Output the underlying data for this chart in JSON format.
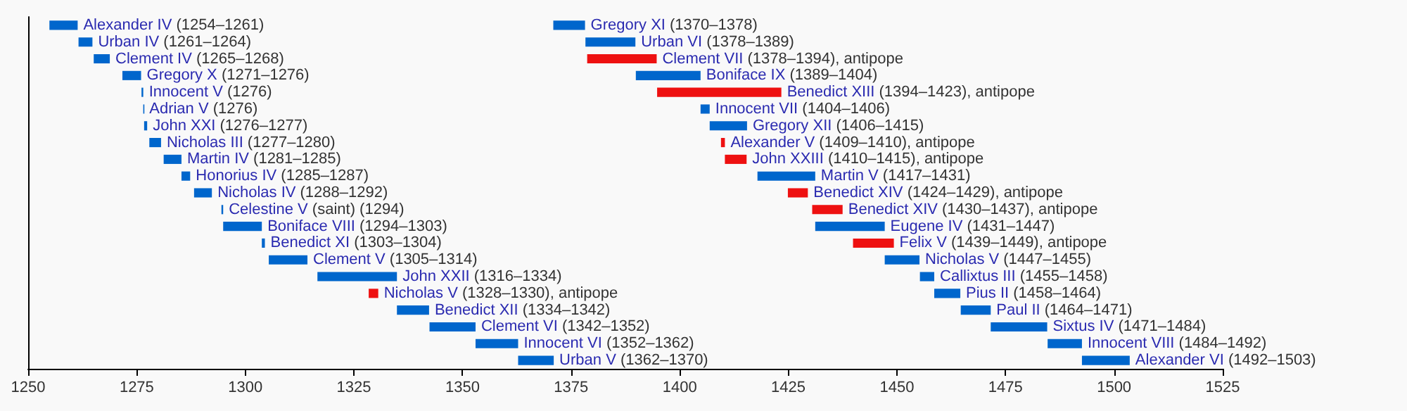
{
  "chart_data": {
    "type": "bar",
    "orientation": "horizontal",
    "categories": [
      null,
      null,
      null,
      null,
      null,
      null,
      null,
      null,
      null,
      null,
      null,
      null,
      null,
      null,
      null,
      null,
      null,
      null,
      null,
      null,
      null
    ],
    "xlim": [
      1250,
      1525
    ],
    "xticks": [
      1250,
      1275,
      1300,
      1325,
      1350,
      1375,
      1400,
      1425,
      1450,
      1475,
      1500,
      1525
    ],
    "series": [
      {
        "base": [
          1254.9,
          1261.6,
          1265.1,
          1271.7,
          1276.1,
          1276.5,
          1276.7,
          1277.9,
          1281.2,
          1285.3,
          1288.2,
          1294.5,
          1294.9,
          1303.8,
          1305.4,
          1316.6,
          1328.4,
          1334.9,
          1342.4,
          1353.0,
          1362.8
        ],
        "values": [
          6.5,
          3.2,
          3.7,
          4.3,
          0.4,
          0.1,
          0.7,
          2.7,
          4.1,
          2.0,
          4.1,
          0.4,
          8.9,
          0.7,
          8.9,
          18.3,
          2.2,
          7.4,
          10.6,
          9.8,
          8.2
        ],
        "colors": [
          "#0066cc",
          "#0066cc",
          "#0066cc",
          "#0066cc",
          "#0066cc",
          "#0066cc",
          "#0066cc",
          "#0066cc",
          "#0066cc",
          "#0066cc",
          "#0066cc",
          "#0066cc",
          "#0066cc",
          "#0066cc",
          "#0066cc",
          "#0066cc",
          "#ee1111",
          "#0066cc",
          "#0066cc",
          "#0066cc",
          "#0066cc"
        ]
      },
      {
        "base": [
          1370.9,
          1378.3,
          1378.7,
          1389.9,
          1394.8,
          1404.8,
          1406.9,
          1409.5,
          1410.4,
          1417.9,
          1424.9,
          1430.5,
          1431.2,
          1439.9,
          1447.2,
          1455.3,
          1458.6,
          1464.7,
          1471.6,
          1484.7,
          1492.6
        ],
        "values": [
          7.3,
          11.5,
          16,
          14.9,
          28.6,
          2.1,
          8.6,
          0.9,
          5,
          13.3,
          4.6,
          7,
          16,
          9.4,
          8,
          3.3,
          6,
          6.9,
          13,
          7.9,
          11
        ],
        "colors": [
          "#0066cc",
          "#0066cc",
          "#ee1111",
          "#0066cc",
          "#ee1111",
          "#0066cc",
          "#0066cc",
          "#ee1111",
          "#ee1111",
          "#0066cc",
          "#ee1111",
          "#ee1111",
          "#0066cc",
          "#ee1111",
          "#0066cc",
          "#0066cc",
          "#0066cc",
          "#0066cc",
          "#0066cc",
          "#0066cc",
          "#0066cc"
        ]
      }
    ],
    "annotations": [
      {
        "text": "Alexander IV (1254–1261)",
        "x": 1261.4
      },
      {
        "text": "Urban IV (1261–1264)",
        "x": 1264.8
      },
      {
        "text": "Clement IV (1265–1268)",
        "x": 1268.8
      },
      {
        "text": "Gregory X (1271–1276)",
        "x": 1276.0
      },
      {
        "text": "Innocent V (1276)",
        "x": 1276.5
      },
      {
        "text": "Adrian V (1276)",
        "x": 1276.6
      },
      {
        "text": "John XXI (1276–1277)",
        "x": 1277.4
      },
      {
        "text": "Nicholas III (1277–1280)",
        "x": 1280.6
      },
      {
        "text": "Martin IV (1281–1285)",
        "x": 1285.3
      },
      {
        "text": "Honorius IV (1285–1287)",
        "x": 1287.3
      },
      {
        "text": "Nicholas IV (1288–1292)",
        "x": 1292.3
      },
      {
        "text": "Celestine V (saint) (1294)",
        "x": 1294.9
      },
      {
        "text": "Boniface VIII (1294–1303)",
        "x": 1303.8
      },
      {
        "text": "Benedict XI (1303–1304)",
        "x": 1304.5
      },
      {
        "text": "Clement V (1305–1314)",
        "x": 1314.3
      },
      {
        "text": "John XXII (1316–1334)",
        "x": 1334.9
      },
      {
        "text": "Nicholas V (1328–1330), antipope",
        "x": 1330.6
      },
      {
        "text": "Benedict XII (1334–1342)",
        "x": 1342.3
      },
      {
        "text": "Clement VI (1342–1352)",
        "x": 1353.0
      },
      {
        "text": "Innocent VI (1352–1362)",
        "x": 1362.8
      },
      {
        "text": "Urban V (1362–1370)",
        "x": 1371.0
      },
      {
        "text": "Gregory XI (1370–1378)",
        "x": 1378.2
      },
      {
        "text": "Urban VI (1378–1389)",
        "x": 1389.8
      },
      {
        "text": "Clement VII (1378–1394), antipope",
        "x": 1394.7
      },
      {
        "text": "Boniface IX (1389–1404)",
        "x": 1404.8
      },
      {
        "text": "Benedict XIII (1394–1423), antipope",
        "x": 1423.4
      },
      {
        "text": "Innocent VII (1404–1406)",
        "x": 1406.9
      },
      {
        "text": "Gregory XII (1406–1415)",
        "x": 1415.5
      },
      {
        "text": "Alexander V (1409–1410), antipope",
        "x": 1410.4
      },
      {
        "text": "John XXIII (1410–1415), antipope",
        "x": 1415.4
      },
      {
        "text": "Martin V (1417–1431)",
        "x": 1431.2
      },
      {
        "text": "Benedict XIV (1424–1429), antipope",
        "x": 1429.5
      },
      {
        "text": "Benedict XIV (1430–1437), antipope",
        "x": 1437.5
      },
      {
        "text": "Eugene IV (1431–1447)",
        "x": 1447.2
      },
      {
        "text": "Felix V (1439–1449), antipope",
        "x": 1449.3
      },
      {
        "text": "Nicholas V (1447–1455)",
        "x": 1455.2
      },
      {
        "text": "Callixtus III (1455–1458)",
        "x": 1458.6
      },
      {
        "text": "Pius II (1458–1464)",
        "x": 1464.6
      },
      {
        "text": "Paul II (1464–1471)",
        "x": 1471.6
      },
      {
        "text": "Sixtus IV (1471–1484)",
        "x": 1484.6
      },
      {
        "text": "Innocent VIII (1484–1492)",
        "x": 1492.6
      },
      {
        "text": "Alexander VI (1492–1503)",
        "x": 1503.6
      }
    ]
  }
}
